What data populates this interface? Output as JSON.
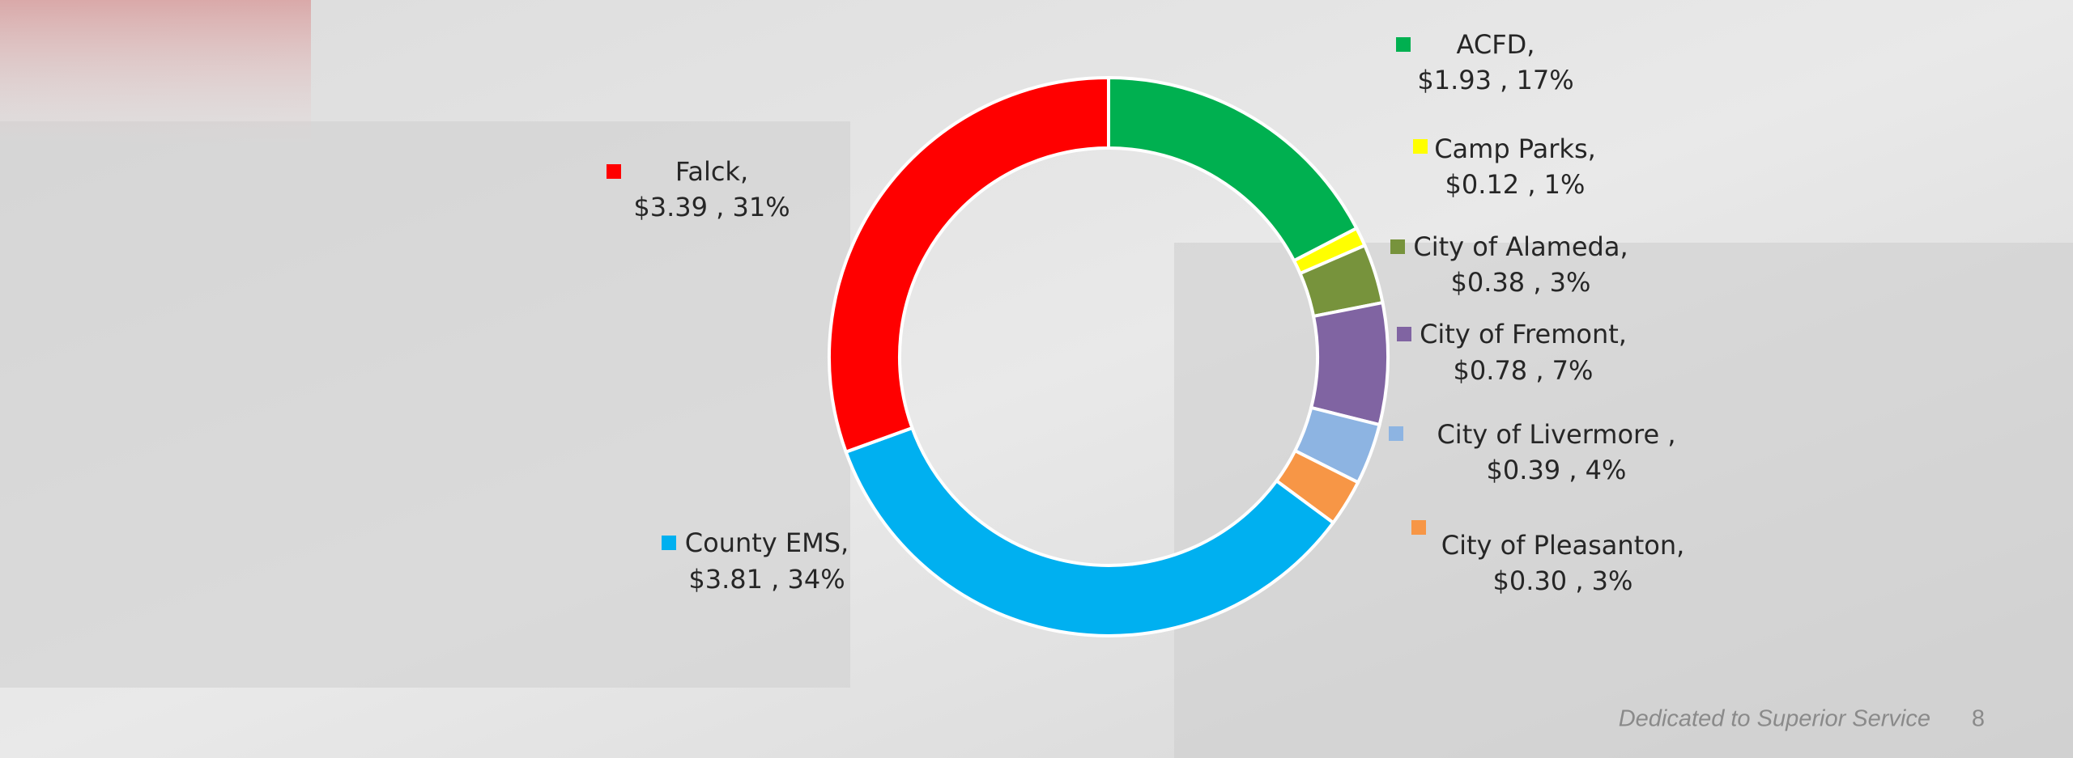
{
  "chart_data": {
    "type": "pie",
    "donut": true,
    "categories": [
      "ACFD,",
      "Camp Parks,",
      "City of Alameda,",
      "City of Fremont,",
      "City of Livermore ,",
      "City of Pleasanton,",
      "County EMS,",
      "Falck,"
    ],
    "values": [
      1.93,
      0.12,
      0.38,
      0.78,
      0.39,
      0.3,
      3.81,
      3.39
    ],
    "value_labels": [
      "$1.93 , 17%",
      "$0.12 , 1%",
      "$0.38 , 3%",
      "$0.78 , 7%",
      "$0.39 , 4%",
      "$0.30 , 3%",
      "$3.81 , 34%",
      "$3.39 , 31%"
    ],
    "colors": [
      "#00b050",
      "#ffff00",
      "#77933c",
      "#8064a2",
      "#8db4e2",
      "#f79646",
      "#00b0f0",
      "#ff0000"
    ]
  },
  "footer": {
    "tagline": "Dedicated to Superior Service",
    "page": 8
  }
}
